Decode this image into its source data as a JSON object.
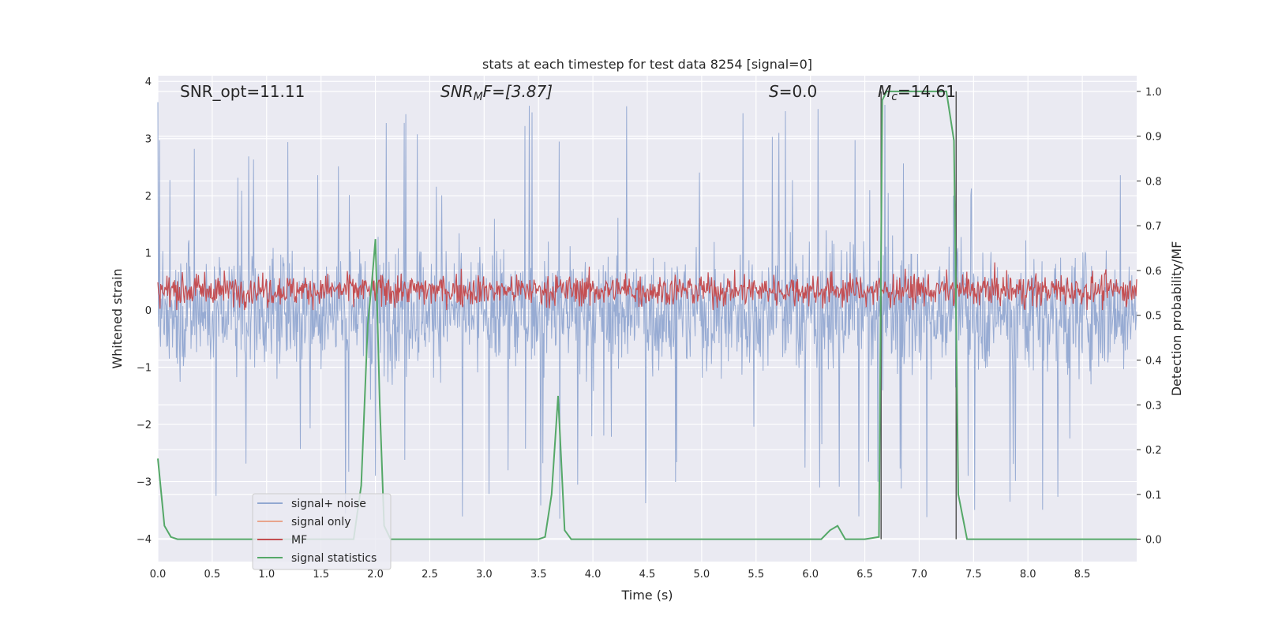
{
  "chart_data": {
    "type": "line",
    "title": "stats at each timestep for test data 8254 [signal=0]",
    "xlabel": "Time (s)",
    "ylabel_left": "Whitened strain",
    "ylabel_right": "Detection probability/MF",
    "xlim": [
      0.0,
      9.0
    ],
    "ylim_left": [
      -4.4,
      4.1
    ],
    "ylim_right": [
      -0.05,
      1.035
    ],
    "x_ticks": [
      "0.0",
      "0.5",
      "1.0",
      "1.5",
      "2.0",
      "2.5",
      "3.0",
      "3.5",
      "4.0",
      "4.5",
      "5.0",
      "5.5",
      "6.0",
      "6.5",
      "7.0",
      "7.5",
      "8.0",
      "8.5"
    ],
    "y_left_ticks": [
      "4",
      "3",
      "2",
      "1",
      "0",
      "−1",
      "−2",
      "−3",
      "−4"
    ],
    "y_right_ticks": [
      "1.0",
      "0.9",
      "0.8",
      "0.7",
      "0.6",
      "0.5",
      "0.4",
      "0.3",
      "0.2",
      "0.1",
      "0.0"
    ],
    "grid": true,
    "legend_position": "lower-left",
    "annotations": {
      "snr_opt": "SNR_opt=11.11",
      "snr_mf_base": "SNR",
      "snr_mf_sub": "M",
      "snr_mf_rest": "F=[3.87]",
      "s_base": "S",
      "s_rest": "=0.0",
      "mc_base": "M",
      "mc_sub": "c",
      "mc_rest": "=14.61"
    },
    "vertical_lines_x": [
      6.65,
      7.34
    ],
    "series": [
      {
        "name": "signal+ noise",
        "color": "#92a8d1",
        "axis": "left",
        "description_values": "noise band approx -1.5 to 1.5, spikes up to 3.7 and down to -4"
      },
      {
        "name": "signal only",
        "color": "#e8a58d",
        "axis": "left"
      },
      {
        "name": "MF",
        "color": "#c44e52",
        "axis": "left",
        "band": [
          0.0,
          0.9
        ]
      },
      {
        "name": "signal statistics",
        "color": "#55a868",
        "axis": "right",
        "x": [
          0.0,
          0.06,
          0.12,
          0.18,
          0.3,
          1.0,
          1.8,
          1.87,
          1.93,
          1.97,
          2.0,
          2.04,
          2.08,
          2.14,
          2.5,
          3.5,
          3.56,
          3.62,
          3.68,
          3.74,
          3.8,
          4.2,
          6.1,
          6.18,
          6.25,
          6.32,
          6.5,
          6.63,
          6.66,
          6.7,
          6.78,
          7.0,
          7.25,
          7.32,
          7.36,
          7.44,
          7.6,
          9.0
        ],
        "y": [
          0.18,
          0.03,
          0.005,
          0.0,
          0.0,
          0.0,
          0.0,
          0.12,
          0.48,
          0.58,
          0.67,
          0.3,
          0.03,
          0.0,
          0.0,
          0.0,
          0.005,
          0.1,
          0.32,
          0.02,
          0.0,
          0.0,
          0.0,
          0.02,
          0.03,
          0.0,
          0.0,
          0.005,
          0.98,
          1.0,
          1.0,
          1.0,
          1.0,
          0.89,
          0.1,
          0.0,
          0.0,
          0.0
        ]
      }
    ]
  }
}
